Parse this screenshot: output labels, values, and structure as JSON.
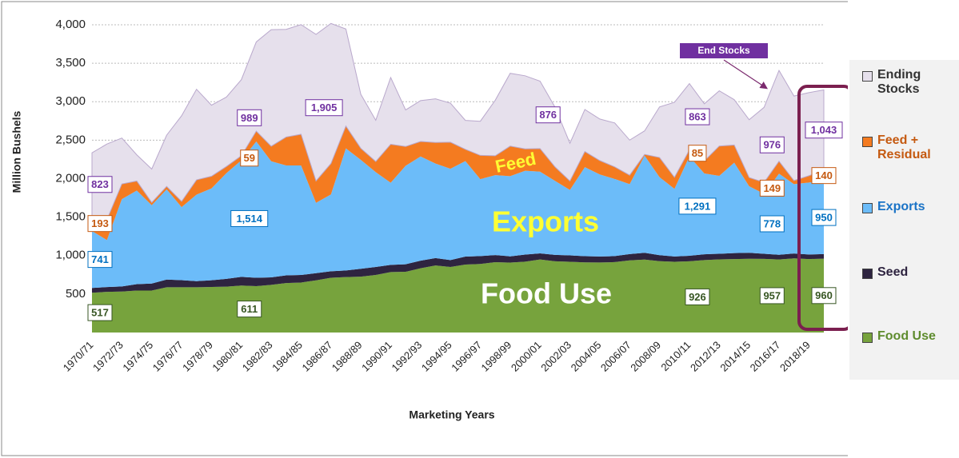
{
  "chart_data": {
    "type": "stacked_area",
    "y_axis_label": "Million Bushels",
    "x_axis_label": "Marketing Years",
    "annotations": [
      "Feed",
      "Exports",
      "Food Use",
      "End Stocks"
    ],
    "categories": [
      "1970/71",
      null,
      "1972/73",
      null,
      "1974/75",
      null,
      "1976/77",
      null,
      "1978/79",
      null,
      "1980/81",
      null,
      "1982/83",
      null,
      "1984/85",
      null,
      "1986/87",
      null,
      "1988/89",
      null,
      "1990/91",
      null,
      "1992/93",
      null,
      "1994/95",
      null,
      "1996/97",
      null,
      "1998/99",
      null,
      "2000/01",
      null,
      "2002/03",
      null,
      "2004/05",
      null,
      "2006/07",
      null,
      "2008/09",
      null,
      "2010/11",
      null,
      "2012/13",
      null,
      "2014/15",
      null,
      "2016/17",
      null,
      "2018/19",
      null
    ],
    "ylim": [
      0,
      4000
    ],
    "yticks": [
      500,
      {
        "value": 1000,
        "label": "1,000"
      },
      {
        "value": 1500,
        "label": "1,500"
      },
      {
        "value": 2000,
        "label": "2,000"
      },
      {
        "value": 2500,
        "label": "2,500"
      },
      {
        "value": 3000,
        "label": "3,000"
      },
      {
        "value": 3500,
        "label": "3,500"
      },
      {
        "value": 4000,
        "label": "4,000"
      }
    ],
    "grid": true,
    "legend": "right",
    "series": [
      {
        "name": "Food Use",
        "color": "#77a33d",
        "values": [
          517,
          528,
          532,
          545,
          545,
          588,
          588,
          588,
          592,
          596,
          611,
          602,
          619,
          643,
          650,
          678,
          712,
          721,
          726,
          748,
          786,
          789,
          835,
          872,
          852,
          883,
          891,
          914,
          909,
          921,
          950,
          926,
          919,
          912,
          910,
          915,
          938,
          948,
          927,
          919,
          926,
          941,
          951,
          955,
          958,
          957,
          949,
          964,
          955,
          960
        ],
        "value_labels": [
          "517",
          null,
          null,
          null,
          null,
          null,
          null,
          null,
          null,
          null,
          "611",
          null,
          null,
          null,
          null,
          null,
          null,
          null,
          null,
          null,
          null,
          null,
          null,
          null,
          null,
          null,
          null,
          null,
          null,
          null,
          null,
          null,
          null,
          null,
          null,
          null,
          null,
          null,
          null,
          null,
          "926",
          null,
          null,
          null,
          null,
          "957",
          null,
          null,
          null,
          "960"
        ]
      },
      {
        "name": "Seed",
        "color": "#2e2440",
        "values": [
          62,
          63,
          67,
          84,
          92,
          100,
          92,
          80,
          87,
          101,
          113,
          110,
          98,
          100,
          98,
          93,
          84,
          85,
          103,
          104,
          93,
          98,
          99,
          96,
          89,
          104,
          102,
          92,
          81,
          92,
          79,
          83,
          84,
          80,
          78,
          78,
          82,
          88,
          78,
          69,
          71,
          76,
          73,
          77,
          79,
          67,
          61,
          63,
          59,
          60
        ]
      },
      {
        "name": "Exports",
        "color": "#6cbcf9",
        "values": [
          741,
          610,
          1135,
          1217,
          1018,
          1173,
          950,
          1124,
          1194,
          1375,
          1514,
          1771,
          1509,
          1429,
          1424,
          915,
          999,
          1588,
          1415,
          1232,
          1068,
          1280,
          1354,
          1228,
          1188,
          1241,
          1001,
          1040,
          1042,
          1090,
          1062,
          962,
          850,
          1158,
          1066,
          1003,
          908,
          1263,
          1015,
          879,
          1291,
          1051,
          1012,
          1176,
          864,
          778,
          1055,
          901,
          936,
          950
        ],
        "value_labels": [
          "741",
          null,
          null,
          null,
          null,
          null,
          null,
          null,
          null,
          null,
          "1,514",
          null,
          null,
          null,
          null,
          null,
          null,
          null,
          null,
          null,
          null,
          null,
          null,
          null,
          null,
          null,
          null,
          null,
          null,
          null,
          null,
          null,
          null,
          null,
          null,
          null,
          null,
          null,
          null,
          null,
          "1,291",
          null,
          null,
          null,
          null,
          "778",
          null,
          null,
          null,
          "950"
        ]
      },
      {
        "name": "Feed + Residual",
        "color": "#f47b20",
        "values": [
          193,
          266,
          197,
          123,
          35,
          38,
          74,
          192,
          158,
          86,
          59,
          135,
          195,
          369,
          405,
          284,
          401,
          290,
          150,
          139,
          500,
          251,
          195,
          274,
          345,
          153,
          308,
          251,
          391,
          284,
          300,
          182,
          116,
          203,
          181,
          157,
          117,
          16,
          255,
          150,
          85,
          162,
          388,
          229,
          113,
          149,
          161,
          47,
          88,
          140
        ],
        "value_labels": [
          "193",
          null,
          null,
          null,
          null,
          null,
          null,
          null,
          null,
          null,
          "59",
          null,
          null,
          null,
          null,
          null,
          null,
          null,
          null,
          null,
          null,
          null,
          null,
          null,
          null,
          null,
          null,
          null,
          null,
          null,
          null,
          null,
          null,
          null,
          null,
          null,
          null,
          null,
          null,
          null,
          "85",
          null,
          null,
          null,
          null,
          "149",
          null,
          null,
          null,
          "140"
        ]
      },
      {
        "name": "Ending Stocks",
        "color": "#e6e0ec",
        "values": [
          823,
          983,
          597,
          340,
          435,
          666,
          1113,
          1178,
          924,
          902,
          989,
          1159,
          1515,
          1399,
          1425,
          1905,
          1821,
          1261,
          702,
          536,
          868,
          475,
          531,
          568,
          507,
          376,
          444,
          722,
          946,
          950,
          876,
          777,
          491,
          546,
          540,
          571,
          456,
          306,
          657,
          976,
          863,
          743,
          718,
          590,
          752,
          976,
          1181,
          1099,
          1080,
          1043
        ],
        "value_labels": [
          "823",
          null,
          null,
          null,
          null,
          null,
          null,
          null,
          null,
          null,
          "989",
          null,
          null,
          null,
          null,
          "1,905",
          null,
          null,
          null,
          null,
          null,
          null,
          null,
          null,
          null,
          null,
          null,
          null,
          null,
          null,
          "876",
          null,
          null,
          null,
          null,
          null,
          null,
          null,
          null,
          null,
          "863",
          null,
          null,
          null,
          null,
          "976",
          null,
          null,
          null,
          "1,043"
        ]
      }
    ]
  }
}
